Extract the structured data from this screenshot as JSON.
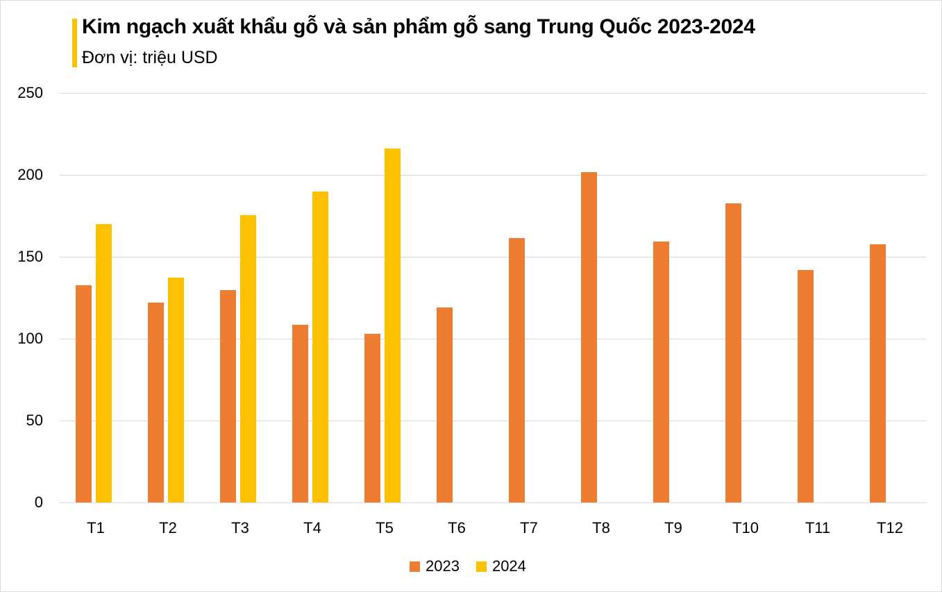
{
  "header": {
    "title": "Kim ngạch xuất khẩu gỗ và sản phẩm gỗ sang Trung Quốc 2023-2024",
    "subtitle": "Đơn vị: triệu USD",
    "accent_color": "#FFC000"
  },
  "legend": [
    {
      "label": "2023",
      "color": "#ED7D31"
    },
    {
      "label": "2024",
      "color": "#FFC000"
    }
  ],
  "chart_data": {
    "type": "bar",
    "title": "Kim ngạch xuất khẩu gỗ và sản phẩm gỗ sang Trung Quốc 2023-2024",
    "subtitle": "Đơn vị: triệu USD",
    "xlabel": "",
    "ylabel": "",
    "categories": [
      "T1",
      "T2",
      "T3",
      "T4",
      "T5",
      "T6",
      "T7",
      "T8",
      "T9",
      "T10",
      "T11",
      "T12"
    ],
    "series": [
      {
        "name": "2023",
        "color": "#ED7D31",
        "values": [
          132.5,
          122,
          129.5,
          108.5,
          103,
          119,
          161.5,
          201.5,
          159.5,
          182.5,
          142,
          157.5
        ]
      },
      {
        "name": "2024",
        "color": "#FFC000",
        "values": [
          170,
          137.5,
          175.5,
          190,
          216,
          null,
          null,
          null,
          null,
          null,
          null,
          null
        ]
      }
    ],
    "ylim": [
      0,
      250
    ],
    "yticks": [
      0,
      50,
      100,
      150,
      200,
      250
    ],
    "grid": true,
    "legend_position": "bottom"
  }
}
